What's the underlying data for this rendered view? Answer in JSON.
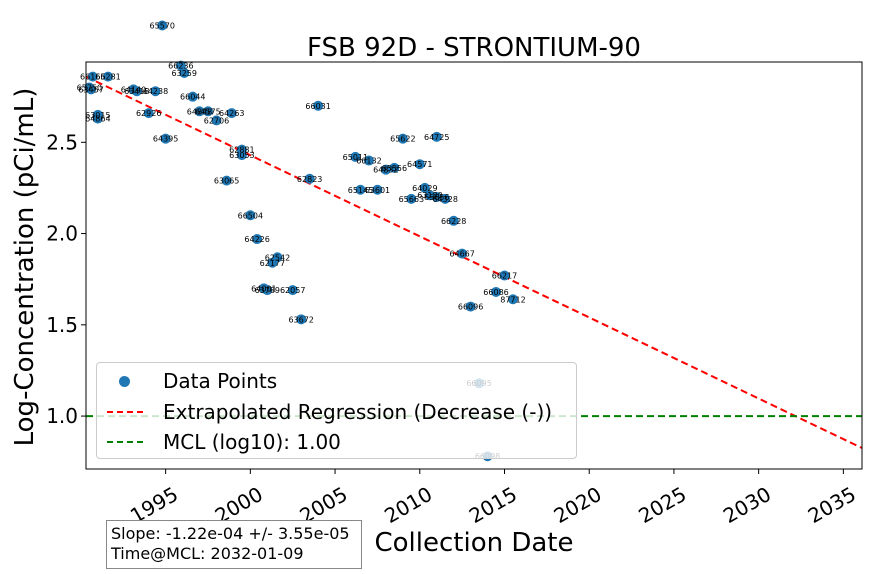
{
  "chart_data": {
    "type": "scatter",
    "title": "FSB 92D - STRONTIUM-90",
    "xlabel": "Collection Date",
    "ylabel": "Log-Concentration (pCi/mL)",
    "xlim": [
      1990.3,
      2036.1
    ],
    "ylim": [
      0.71,
      2.94
    ],
    "x_ticks": [
      1995,
      2000,
      2005,
      2010,
      2015,
      2020,
      2025,
      2030,
      2035
    ],
    "y_ticks": [
      1.0,
      1.5,
      2.0,
      2.5
    ],
    "y_tick_labels": [
      "1.0",
      "1.5",
      "2.0",
      "2.5"
    ],
    "grid": false,
    "legend_position": "lower-left",
    "colors": {
      "points": "#1f77b4",
      "regression": "#ff0000",
      "mcl": "#008000"
    },
    "series": [
      {
        "name": "Data Points",
        "points": [
          {
            "x": 1990.5,
            "y": 2.8,
            "label": "65750"
          },
          {
            "x": 1990.6,
            "y": 2.79,
            "label": "63457"
          },
          {
            "x": 1990.7,
            "y": 2.86,
            "label": "66165"
          },
          {
            "x": 1991.0,
            "y": 2.65,
            "label": "63015"
          },
          {
            "x": 1991.0,
            "y": 2.63,
            "label": "64864"
          },
          {
            "x": 1991.6,
            "y": 2.86,
            "label": "66281"
          },
          {
            "x": 1993.1,
            "y": 2.79,
            "label": "64140"
          },
          {
            "x": 1993.3,
            "y": 2.78,
            "label": "63418"
          },
          {
            "x": 1994.0,
            "y": 2.66,
            "label": "62926"
          },
          {
            "x": 1994.4,
            "y": 2.78,
            "label": "64238"
          },
          {
            "x": 1994.8,
            "y": 3.14,
            "label": "65570"
          },
          {
            "x": 1995.0,
            "y": 2.52,
            "label": "64395"
          },
          {
            "x": 1995.9,
            "y": 2.92,
            "label": "66236"
          },
          {
            "x": 1996.1,
            "y": 2.88,
            "label": "63259"
          },
          {
            "x": 1996.6,
            "y": 2.75,
            "label": "66044"
          },
          {
            "x": 1997.0,
            "y": 2.67,
            "label": "64848"
          },
          {
            "x": 1997.5,
            "y": 2.67,
            "label": "64575"
          },
          {
            "x": 1998.0,
            "y": 2.62,
            "label": "62706"
          },
          {
            "x": 1998.6,
            "y": 2.29,
            "label": "63065"
          },
          {
            "x": 1998.9,
            "y": 2.66,
            "label": "64263"
          },
          {
            "x": 1999.5,
            "y": 2.46,
            "label": "62881"
          },
          {
            "x": 1999.5,
            "y": 2.43,
            "label": "63053"
          },
          {
            "x": 2000.0,
            "y": 2.1,
            "label": "66504"
          },
          {
            "x": 2000.4,
            "y": 1.97,
            "label": "64226"
          },
          {
            "x": 2000.8,
            "y": 1.7,
            "label": "64001"
          },
          {
            "x": 2001.0,
            "y": 1.69,
            "label": "63789"
          },
          {
            "x": 2001.3,
            "y": 1.84,
            "label": "62177"
          },
          {
            "x": 2001.6,
            "y": 1.87,
            "label": "62542"
          },
          {
            "x": 2002.5,
            "y": 1.69,
            "label": "62057"
          },
          {
            "x": 2003.0,
            "y": 1.53,
            "label": "63672"
          },
          {
            "x": 2003.5,
            "y": 2.3,
            "label": "62823"
          },
          {
            "x": 2004.0,
            "y": 2.7,
            "label": "66031"
          },
          {
            "x": 2006.2,
            "y": 2.42,
            "label": "65011"
          },
          {
            "x": 2006.5,
            "y": 2.24,
            "label": "65145"
          },
          {
            "x": 2007.0,
            "y": 2.4,
            "label": "66132"
          },
          {
            "x": 2007.5,
            "y": 2.24,
            "label": "63601"
          },
          {
            "x": 2008.0,
            "y": 2.35,
            "label": "64832"
          },
          {
            "x": 2008.5,
            "y": 2.36,
            "label": "65556"
          },
          {
            "x": 2009.0,
            "y": 2.52,
            "label": "65622"
          },
          {
            "x": 2009.5,
            "y": 2.19,
            "label": "65663"
          },
          {
            "x": 2010.0,
            "y": 2.38,
            "label": "64571"
          },
          {
            "x": 2010.3,
            "y": 2.25,
            "label": "64029"
          },
          {
            "x": 2010.6,
            "y": 2.21,
            "label": "63180"
          },
          {
            "x": 2011.0,
            "y": 2.2,
            "label": "65656"
          },
          {
            "x": 2011.0,
            "y": 2.53,
            "label": "64725"
          },
          {
            "x": 2011.5,
            "y": 2.19,
            "label": "64328"
          },
          {
            "x": 2012.0,
            "y": 2.07,
            "label": "66228"
          },
          {
            "x": 2012.5,
            "y": 1.89,
            "label": "64667"
          },
          {
            "x": 2013.0,
            "y": 1.6,
            "label": "66096"
          },
          {
            "x": 2013.5,
            "y": 1.18,
            "label": "66095"
          },
          {
            "x": 2014.0,
            "y": 0.78,
            "label": "66098"
          },
          {
            "x": 2014.5,
            "y": 1.68,
            "label": "66086"
          },
          {
            "x": 2015.0,
            "y": 1.77,
            "label": "66217"
          },
          {
            "x": 2015.5,
            "y": 1.64,
            "label": "87712"
          }
        ]
      },
      {
        "name": "Extrapolated Regression (Decrease (-))",
        "line": {
          "x": [
            1990.3,
            2036.1
          ],
          "y": [
            2.86,
            0.825
          ]
        }
      },
      {
        "name": "MCL (log10): 1.00",
        "hline": 1.0
      }
    ],
    "annotations": {
      "slope": "Slope: -1.22e-04 +/- 3.55e-05",
      "time_at_mcl": "Time@MCL: 2032-01-09"
    }
  }
}
